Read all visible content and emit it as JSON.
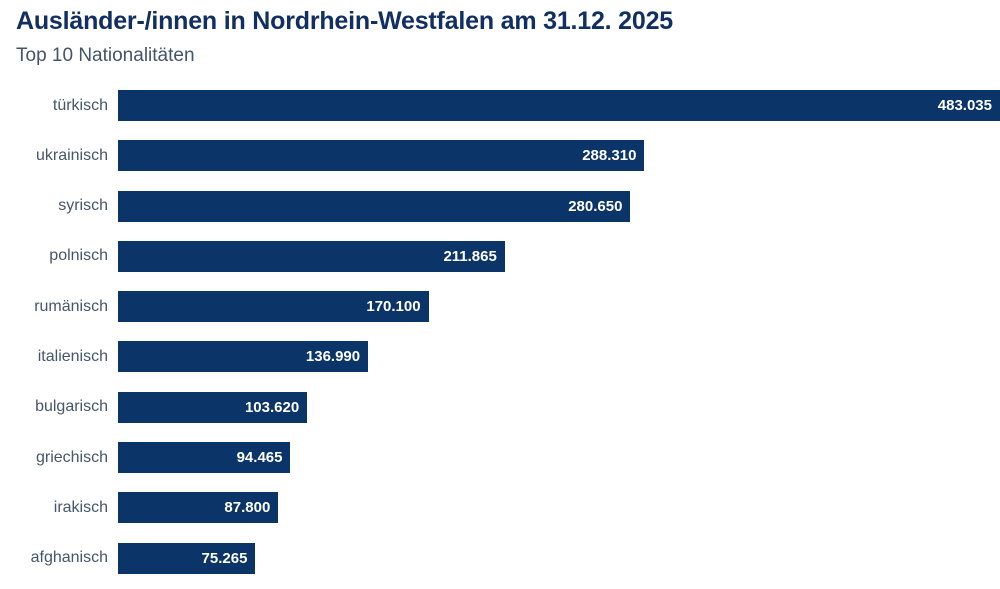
{
  "header": {
    "title": "Ausländer-/innen in Nordrhein-Westfalen am 31.12. 2025",
    "subtitle": "Top 10 Nationalitäten"
  },
  "colors": {
    "bar": "#0b3469",
    "title_text": "#122f63",
    "subtitle_text": "#44546a",
    "category_text": "#46566b",
    "value_text": "#ffffff",
    "background": "#ffffff"
  },
  "chart_data": {
    "type": "bar",
    "orientation": "horizontal",
    "title": "Ausländer-/innen in Nordrhein-Westfalen am 31.12. 2025",
    "subtitle": "Top 10 Nationalitäten",
    "categories": [
      "türkisch",
      "ukrainisch",
      "syrisch",
      "polnisch",
      "rumänisch",
      "italienisch",
      "bulgarisch",
      "griechisch",
      "irakisch",
      "afghanisch"
    ],
    "values": [
      483035,
      288310,
      280650,
      211865,
      170100,
      136990,
      103620,
      94465,
      87800,
      75265
    ],
    "value_labels": [
      "483.035",
      "288.310",
      "280.650",
      "211.865",
      "170.100",
      "136.990",
      "103.620",
      "94.465",
      "87.800",
      "75.265"
    ],
    "xlim": [
      0,
      483035
    ],
    "grid": false,
    "legend": "none",
    "value_label_position": "inside-end"
  }
}
